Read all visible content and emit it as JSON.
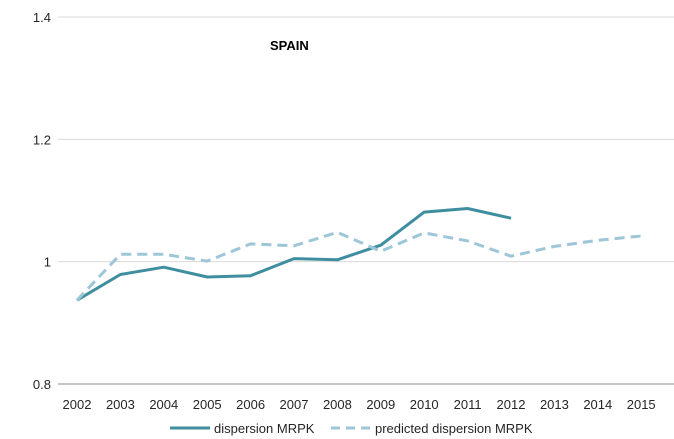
{
  "chart_data": {
    "type": "line",
    "title": "SPAIN",
    "xlabel": "",
    "ylabel": "",
    "categories": [
      "2002",
      "2003",
      "2004",
      "2005",
      "2006",
      "2007",
      "2008",
      "2009",
      "2010",
      "2011",
      "2012",
      "2013",
      "2014",
      "2015"
    ],
    "ylim": [
      0.8,
      1.4
    ],
    "yticks": [
      0.8,
      1,
      1.2,
      1.4
    ],
    "ytick_labels": [
      "0.8",
      "1",
      "1.2",
      "1.4"
    ],
    "grid": "horizontal",
    "legend_position": "bottom",
    "series": [
      {
        "name": "dispersion MRPK",
        "style": "solid",
        "color": "#3f8ea0",
        "values": [
          0.937,
          0.979,
          0.991,
          0.975,
          0.977,
          1.005,
          1.003,
          1.027,
          1.081,
          1.087,
          1.071,
          null,
          null,
          null
        ]
      },
      {
        "name": "predicted dispersion MRPK",
        "style": "dashed",
        "color": "#9dc6d8",
        "values": [
          0.937,
          1.012,
          1.012,
          1.001,
          1.029,
          1.026,
          1.048,
          1.017,
          1.047,
          1.034,
          1.009,
          1.025,
          1.035,
          1.042
        ]
      }
    ]
  }
}
